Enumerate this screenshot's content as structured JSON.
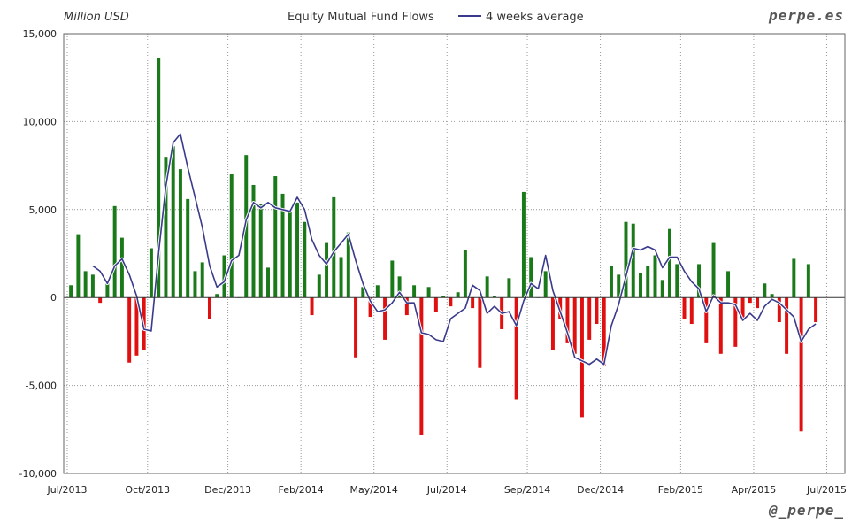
{
  "header": {
    "unit_label": "Million USD",
    "title": "Equity Mutual Fund Flows",
    "legend_label": "4 weeks average",
    "brand": "perpe.es",
    "handle": "@_perpe_"
  },
  "colors": {
    "positive": "#1a7a1a",
    "negative": "#e01010",
    "line": "#3a3a8c",
    "grid": "#999999"
  },
  "chart_data": {
    "type": "bar",
    "title": "Equity Mutual Fund Flows",
    "ylabel": "Million USD",
    "ylim": [
      -10000,
      15000
    ],
    "yticks": [
      -10000,
      -5000,
      0,
      5000,
      10000,
      15000
    ],
    "ytick_labels": [
      "-10,000",
      "-5,000",
      "0",
      "5,000",
      "10,000",
      "15,000"
    ],
    "xlim": [
      0,
      106
    ],
    "xticks": [
      0,
      11,
      22,
      32,
      42,
      52,
      63,
      73,
      84,
      94,
      104
    ],
    "xtick_labels": [
      "Jul/2013",
      "Oct/2013",
      "Dec/2013",
      "Feb/2014",
      "May/2014",
      "Jul/2014",
      "Sep/2014",
      "Dec/2014",
      "Feb/2015",
      "Apr/2015",
      "Jul/2015"
    ],
    "grid": true,
    "legend": "top",
    "series": [
      {
        "name": "",
        "kind": "bar",
        "values": [
          700,
          3600,
          1500,
          1300,
          -300,
          900,
          5200,
          3400,
          -3700,
          -3300,
          -3000,
          2800,
          13600,
          8000,
          8600,
          7300,
          5600,
          1500,
          2000,
          -1200,
          200,
          2400,
          7000,
          0,
          8100,
          6400,
          5300,
          1700,
          6900,
          5900,
          5000,
          5400,
          4300,
          -1000,
          1300,
          3100,
          5700,
          2300,
          3700,
          -3400,
          600,
          -1100,
          700,
          -2400,
          2100,
          1200,
          -1000,
          700,
          -7800,
          600,
          -800,
          100,
          -500,
          300,
          2700,
          -600,
          -4000,
          1200,
          100,
          -1800,
          1100,
          -5800,
          6000,
          2300,
          0,
          1500,
          -3000,
          -1200,
          -2600,
          -3200,
          -6800,
          -2400,
          -1500,
          -3900,
          1800,
          1300,
          4300,
          4200,
          1400,
          1800,
          2400,
          1000,
          3900,
          1900,
          -1200,
          -1500,
          1900,
          -2600,
          3100,
          -3200,
          1500,
          -2800,
          -1300,
          -300,
          -600,
          800,
          200,
          -1400,
          -3200,
          2200,
          -7600,
          1900,
          -1400
        ]
      },
      {
        "name": "4 weeks average",
        "kind": "line",
        "values": [
          null,
          null,
          null,
          1800,
          1500,
          800,
          1800,
          2200,
          1300,
          100,
          -1800,
          -1900,
          2500,
          6300,
          8800,
          9300,
          7400,
          5700,
          4000,
          1800,
          600,
          900,
          2100,
          2400,
          4400,
          5400,
          5100,
          5400,
          5100,
          5000,
          4900,
          5700,
          5000,
          3300,
          2400,
          1900,
          2600,
          3100,
          3600,
          2100,
          800,
          -200,
          -800,
          -700,
          -300,
          300,
          -300,
          -300,
          -2000,
          -2100,
          -2400,
          -2500,
          -1200,
          -900,
          -600,
          700,
          400,
          -900,
          -500,
          -900,
          -800,
          -1600,
          -200,
          800,
          500,
          2400,
          400,
          -800,
          -2000,
          -3400,
          -3600,
          -3800,
          -3500,
          -3800,
          -1600,
          -400,
          1200,
          2800,
          2700,
          2900,
          2700,
          1700,
          2300,
          2300,
          1500,
          900,
          500,
          -800,
          100,
          -300,
          -300,
          -400,
          -1300,
          -900,
          -1300,
          -500,
          -100,
          -300,
          -700,
          -1100,
          -2500,
          -1800,
          -1500
        ]
      }
    ]
  }
}
